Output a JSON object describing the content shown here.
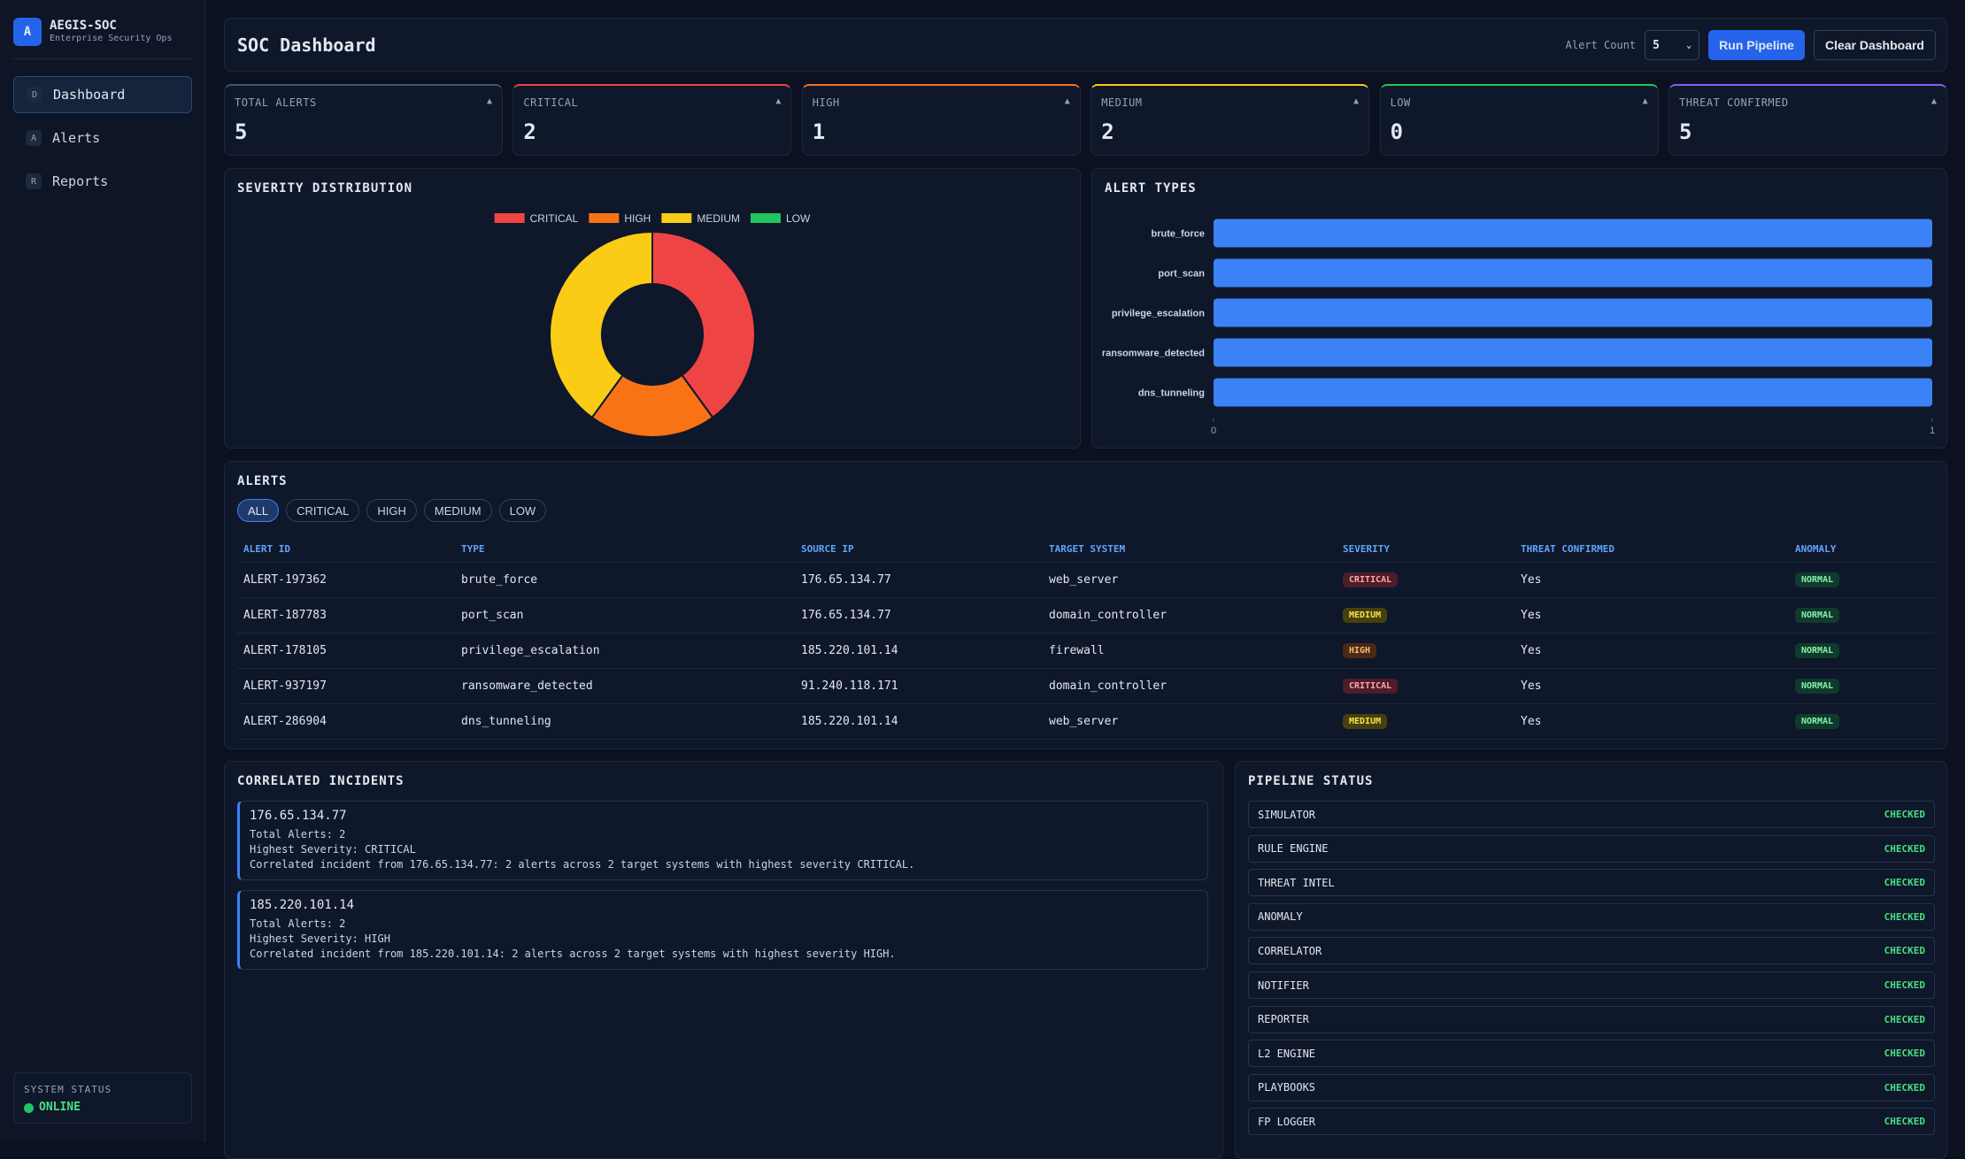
{
  "sidebar": {
    "logo": "A",
    "brand": "AEGIS-SOC",
    "tagline": "Enterprise Security Ops",
    "nav": [
      {
        "icon": "D",
        "label": "Dashboard"
      },
      {
        "icon": "A",
        "label": "Alerts"
      },
      {
        "icon": "R",
        "label": "Reports"
      }
    ],
    "status_label": "SYSTEM STATUS",
    "status": "ONLINE"
  },
  "header": {
    "title": "SOC Dashboard",
    "alert_count_label": "Alert Count",
    "alert_count": "5",
    "run": "Run Pipeline",
    "clear": "Clear Dashboard"
  },
  "stats": [
    {
      "label": "TOTAL ALERTS",
      "value": 5,
      "arrow": "▲",
      "color": "#475569"
    },
    {
      "label": "CRITICAL",
      "value": 2,
      "arrow": "▲",
      "color": "#ef4444"
    },
    {
      "label": "HIGH",
      "value": 1,
      "arrow": "▲",
      "color": "#f97316"
    },
    {
      "label": "MEDIUM",
      "value": 2,
      "arrow": "▲",
      "color": "#facc15"
    },
    {
      "label": "LOW",
      "value": 0,
      "arrow": "▲",
      "color": "#22c55e"
    },
    {
      "label": "THREAT CONFIRMED",
      "value": 5,
      "arrow": "▲",
      "color": "#8b5cf6"
    }
  ],
  "chart_data": [
    {
      "type": "pie",
      "title": "SEVERITY DISTRIBUTION",
      "categories": [
        "CRITICAL",
        "HIGH",
        "MEDIUM",
        "LOW"
      ],
      "values": [
        2,
        1,
        2,
        0
      ],
      "colors": [
        "#ef4444",
        "#f97316",
        "#facc15",
        "#22c55e"
      ],
      "donut": true,
      "legend": "top"
    },
    {
      "type": "bar",
      "orientation": "horizontal",
      "title": "ALERT TYPES",
      "categories": [
        "brute_force",
        "port_scan",
        "privilege_escalation",
        "ransomware_detected",
        "dns_tunneling"
      ],
      "values": [
        1,
        1,
        1,
        1,
        1
      ],
      "color": "#3b82f6",
      "xlim": [
        0,
        1
      ],
      "xticks": [
        0,
        1
      ]
    }
  ],
  "alerts": {
    "title": "ALERTS",
    "filters": [
      "ALL",
      "CRITICAL",
      "HIGH",
      "MEDIUM",
      "LOW"
    ],
    "columns": [
      "ALERT ID",
      "TYPE",
      "SOURCE IP",
      "TARGET SYSTEM",
      "SEVERITY",
      "THREAT CONFIRMED",
      "ANOMALY"
    ],
    "rows": [
      [
        "ALERT-197362",
        "brute_force",
        "176.65.134.77",
        "web_server",
        "CRITICAL",
        "Yes",
        "NORMAL"
      ],
      [
        "ALERT-187783",
        "port_scan",
        "176.65.134.77",
        "domain_controller",
        "MEDIUM",
        "Yes",
        "NORMAL"
      ],
      [
        "ALERT-178105",
        "privilege_escalation",
        "185.220.101.14",
        "firewall",
        "HIGH",
        "Yes",
        "NORMAL"
      ],
      [
        "ALERT-937197",
        "ransomware_detected",
        "91.240.118.171",
        "domain_controller",
        "CRITICAL",
        "Yes",
        "NORMAL"
      ],
      [
        "ALERT-286904",
        "dns_tunneling",
        "185.220.101.14",
        "web_server",
        "MEDIUM",
        "Yes",
        "NORMAL"
      ]
    ]
  },
  "incidents": {
    "title": "CORRELATED INCIDENTS",
    "items": [
      {
        "ip": "176.65.134.77",
        "lines": [
          "Total Alerts: 2",
          "Highest Severity: CRITICAL",
          "Correlated incident from 176.65.134.77: 2 alerts across 2 target systems with highest severity CRITICAL."
        ]
      },
      {
        "ip": "185.220.101.14",
        "lines": [
          "Total Alerts: 2",
          "Highest Severity: HIGH",
          "Correlated incident from 185.220.101.14: 2 alerts across 2 target systems with highest severity HIGH."
        ]
      }
    ]
  },
  "pipeline": {
    "title": "PIPELINE STATUS",
    "items": [
      {
        "name": "SIMULATOR",
        "status": "CHECKED"
      },
      {
        "name": "RULE ENGINE",
        "status": "CHECKED"
      },
      {
        "name": "THREAT INTEL",
        "status": "CHECKED"
      },
      {
        "name": "ANOMALY",
        "status": "CHECKED"
      },
      {
        "name": "CORRELATOR",
        "status": "CHECKED"
      },
      {
        "name": "NOTIFIER",
        "status": "CHECKED"
      },
      {
        "name": "REPORTER",
        "status": "CHECKED"
      },
      {
        "name": "L2 ENGINE",
        "status": "CHECKED"
      },
      {
        "name": "PLAYBOOKS",
        "status": "CHECKED"
      },
      {
        "name": "FP LOGGER",
        "status": "CHECKED"
      }
    ]
  }
}
